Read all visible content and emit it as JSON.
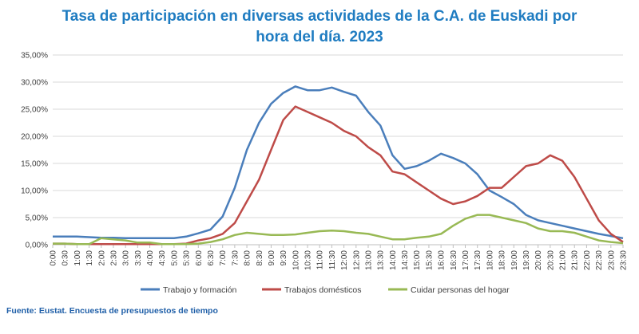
{
  "chart_data": {
    "type": "line",
    "title_line1": "Tasa de participación en diversas actividades de la C.A. de Euskadi por",
    "title_line2": "hora del día. 2023",
    "source": "Fuente: Eustat. Encuesta de presupuestos de tiempo",
    "xlabel": "",
    "ylabel": "",
    "ylim": [
      0,
      35
    ],
    "yticks": [
      "0,00%",
      "5,00%",
      "10,00%",
      "15,00%",
      "20,00%",
      "25,00%",
      "30,00%",
      "35,00%"
    ],
    "grid": true,
    "legend_position": "bottom",
    "x": [
      "0:00",
      "0:30",
      "1:00",
      "1:30",
      "2:00",
      "2:30",
      "3:00",
      "3:30",
      "4:00",
      "4:30",
      "5:00",
      "5:30",
      "6:00",
      "6:30",
      "7:00",
      "7:30",
      "8:00",
      "8:30",
      "9:00",
      "9:30",
      "10:00",
      "10:30",
      "11:00",
      "11:30",
      "12:00",
      "12:30",
      "13:00",
      "13:30",
      "14:00",
      "14:30",
      "15:00",
      "15:30",
      "16:00",
      "16:30",
      "17:00",
      "17:30",
      "18:00",
      "18:30",
      "19:00",
      "19:30",
      "20:00",
      "20:30",
      "21:00",
      "21:30",
      "22:00",
      "22:30",
      "23:00",
      "23:30"
    ],
    "series": [
      {
        "name": "Trabajo y formación",
        "color": "#4a7ebb",
        "values": [
          1.5,
          1.5,
          1.5,
          1.4,
          1.3,
          1.3,
          1.2,
          1.2,
          1.2,
          1.2,
          1.2,
          1.5,
          2.1,
          2.8,
          5.2,
          10.5,
          17.5,
          22.5,
          26.0,
          28.0,
          29.2,
          28.5,
          28.5,
          29.0,
          28.2,
          27.5,
          24.5,
          22.0,
          16.5,
          14.0,
          14.5,
          15.5,
          16.8,
          16.0,
          15.0,
          13.0,
          10.0,
          8.8,
          7.5,
          5.5,
          4.5,
          4.0,
          3.5,
          3.0,
          2.5,
          2.0,
          1.6,
          1.2
        ]
      },
      {
        "name": "Trabajos domésticos",
        "color": "#be4b48",
        "values": [
          0.2,
          0.2,
          0.1,
          0.1,
          0.1,
          0.1,
          0.1,
          0.1,
          0.1,
          0.1,
          0.1,
          0.2,
          0.8,
          1.2,
          2.0,
          4.0,
          8.0,
          12.0,
          17.5,
          23.0,
          25.5,
          24.5,
          23.5,
          22.5,
          21.0,
          20.0,
          18.0,
          16.5,
          13.5,
          13.0,
          11.5,
          10.0,
          8.5,
          7.5,
          8.0,
          9.0,
          10.5,
          10.5,
          12.5,
          14.5,
          15.0,
          16.5,
          15.5,
          12.5,
          8.5,
          4.5,
          2.0,
          0.5
        ]
      },
      {
        "name": "Cuidar personas del hogar",
        "color": "#98b954",
        "values": [
          0.2,
          0.2,
          0.1,
          0.1,
          1.2,
          1.0,
          0.8,
          0.4,
          0.4,
          0.1,
          0.1,
          0.1,
          0.2,
          0.5,
          1.0,
          1.8,
          2.2,
          2.0,
          1.8,
          1.8,
          1.9,
          2.2,
          2.5,
          2.6,
          2.5,
          2.2,
          2.0,
          1.5,
          1.0,
          1.0,
          1.3,
          1.5,
          2.0,
          3.5,
          4.8,
          5.5,
          5.5,
          5.0,
          4.5,
          4.0,
          3.0,
          2.5,
          2.5,
          2.2,
          1.5,
          0.8,
          0.5,
          0.3
        ]
      }
    ]
  }
}
